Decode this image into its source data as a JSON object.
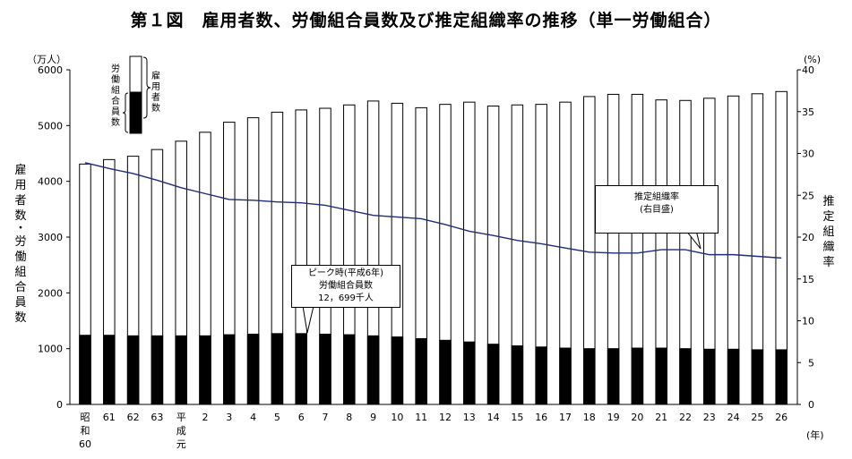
{
  "title": "第１図　雇用者数、労働組合員数及び推定組織率の推移（単一労働組合）",
  "left_axis": {
    "unit": "（万人）",
    "label": "雇用者数・労働組合員数"
  },
  "right_axis": {
    "unit": "(%)",
    "label": "推定組織率"
  },
  "x_unit": "(年)",
  "legend": {
    "outer": "雇用者数",
    "inner": "労働組合員数"
  },
  "callouts": {
    "peak": "ピーク時(平成6年)\n労働組合員数\n12，699千人",
    "rate": "推定組織率\n(右目盛)"
  },
  "colors": {
    "union": "#000000",
    "employee": "#ffffff",
    "rate_line": "#1f2d7a"
  },
  "chart_data": {
    "type": "bar",
    "categories": [
      "昭和60",
      "61",
      "62",
      "63",
      "平成元",
      "2",
      "3",
      "4",
      "5",
      "6",
      "7",
      "8",
      "9",
      "10",
      "11",
      "12",
      "13",
      "14",
      "15",
      "16",
      "17",
      "18",
      "19",
      "20",
      "21",
      "22",
      "23",
      "24",
      "25",
      "26"
    ],
    "tick_labels": [
      "昭\n和\n60",
      "61",
      "62",
      "63",
      "平\n成\n元",
      "2",
      "3",
      "4",
      "5",
      "6",
      "7",
      "8",
      "9",
      "10",
      "11",
      "12",
      "13",
      "14",
      "15",
      "16",
      "17",
      "18",
      "19",
      "20",
      "21",
      "22",
      "23",
      "24",
      "25",
      "26"
    ],
    "series": [
      {
        "name": "雇用者数",
        "values": [
          4310,
          4390,
          4450,
          4570,
          4720,
          4880,
          5060,
          5140,
          5240,
          5280,
          5310,
          5370,
          5440,
          5400,
          5320,
          5380,
          5420,
          5350,
          5370,
          5380,
          5420,
          5520,
          5560,
          5560,
          5460,
          5450,
          5490,
          5530,
          5570,
          5610
        ]
      },
      {
        "name": "労働組合員数",
        "values": [
          1240,
          1240,
          1230,
          1230,
          1230,
          1230,
          1250,
          1260,
          1270,
          1270,
          1260,
          1250,
          1230,
          1210,
          1180,
          1150,
          1120,
          1080,
          1050,
          1030,
          1010,
          1000,
          1000,
          1010,
          1010,
          1000,
          990,
          990,
          980,
          980
        ]
      },
      {
        "name": "推定組織率",
        "axis": "right",
        "values": [
          28.9,
          28.2,
          27.6,
          26.8,
          25.9,
          25.2,
          24.5,
          24.4,
          24.2,
          24.1,
          23.8,
          23.2,
          22.6,
          22.4,
          22.2,
          21.5,
          20.7,
          20.2,
          19.6,
          19.2,
          18.7,
          18.2,
          18.1,
          18.1,
          18.5,
          18.5,
          17.9,
          17.9,
          17.7,
          17.5
        ]
      }
    ],
    "ylim": [
      0,
      6000
    ],
    "yticks": [
      0,
      1000,
      2000,
      3000,
      4000,
      5000,
      6000
    ],
    "y2lim": [
      0,
      40
    ],
    "y2ticks": [
      0,
      5,
      10,
      15,
      20,
      25,
      30,
      35,
      40
    ]
  }
}
